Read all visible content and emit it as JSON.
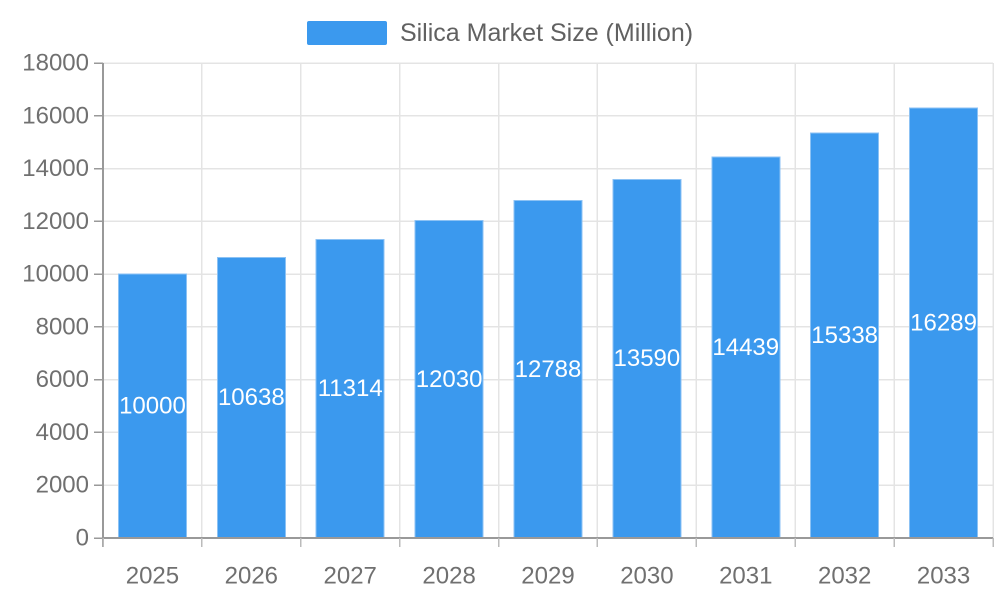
{
  "legend": {
    "label": "Silica Market Size (Million)"
  },
  "chart_data": {
    "type": "bar",
    "title": "",
    "categories": [
      "2025",
      "2026",
      "2027",
      "2028",
      "2029",
      "2030",
      "2031",
      "2032",
      "2033"
    ],
    "series": [
      {
        "name": "Silica Market Size (Million)",
        "values": [
          10000,
          10638,
          11314,
          12030,
          12788,
          13590,
          14439,
          15338,
          16289
        ]
      }
    ],
    "xlabel": "",
    "ylabel": "",
    "ylim": [
      0,
      18000
    ],
    "ytick_step": 2000,
    "ytick_labels": [
      "0",
      "2000",
      "4000",
      "6000",
      "8000",
      "10000",
      "12000",
      "14000",
      "16000",
      "18000"
    ],
    "grid": true,
    "legend_position": "top-center",
    "value_labels": "inside-center",
    "colors": {
      "bar_fill": "#3B99EE",
      "bar_border": "#8CC2F4",
      "value_label": "#FFFFFF",
      "axis_label": "#707070",
      "legend_text": "#616161",
      "grid_line": "#E4E4E4",
      "axis_line": "#999999",
      "x_tick": "#BBBBBB",
      "background": "#FFFFFF"
    }
  }
}
